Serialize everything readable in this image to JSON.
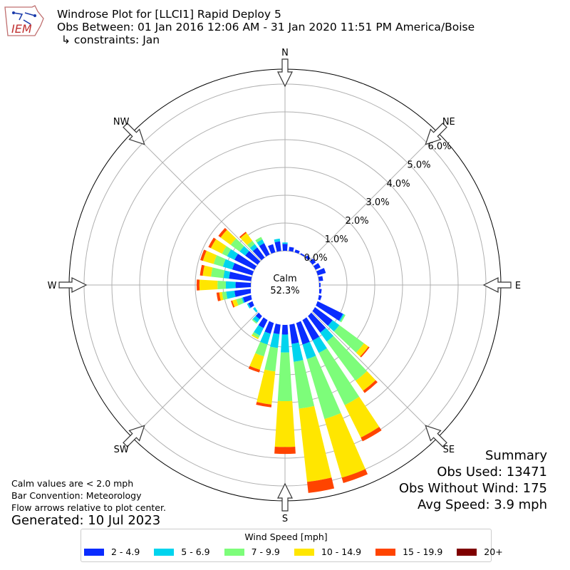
{
  "header": {
    "logo_text": "IEM",
    "title_line1": "Windrose Plot for [LLCI1] Rapid Deploy 5",
    "title_line2": "Obs Between: 01 Jan 2016 12:06 AM - 31 Jan 2020 11:51 PM America/Boise",
    "title_line3": "↳ constraints: Jan"
  },
  "notes": {
    "line1": "Calm values are < 2.0 mph",
    "line2": "Bar Convention: Meteorology",
    "line3": "Flow arrows relative to plot center.",
    "generated": "Generated: 10 Jul 2023"
  },
  "summary": {
    "title": "Summary",
    "obs_used": "Obs Used: 13471",
    "obs_without_wind": "Obs Without Wind: 175",
    "avg_speed": "Avg Speed: 3.9 mph"
  },
  "center": {
    "calm_label": "Calm",
    "calm_value": "52.3%"
  },
  "colors": {
    "bin_colors": [
      "#0a2cff",
      "#00d4ee",
      "#7dfd7a",
      "#ffe600",
      "#ff4400",
      "#7f0000"
    ],
    "grid": "#b0b0b0",
    "outline": "#000000"
  },
  "legend": {
    "title": "Wind Speed [mph]",
    "items": [
      "2 - 4.9",
      "5 - 6.9",
      "7 - 9.9",
      "10 - 14.9",
      "15 - 19.9",
      "20+"
    ]
  },
  "chart_data": {
    "type": "windrose",
    "direction_labels": [
      "N",
      "NE",
      "E",
      "SE",
      "S",
      "SW",
      "W",
      "NW"
    ],
    "radial_ticks": [
      "0.0%",
      "1.0%",
      "2.0%",
      "3.0%",
      "4.0%",
      "5.0%",
      "6.0%"
    ],
    "radial_range": [
      0,
      6.5
    ],
    "speed_bins": [
      "2 - 4.9",
      "5 - 6.9",
      "7 - 9.9",
      "10 - 14.9",
      "15 - 19.9",
      "20+"
    ],
    "directions_deg": [
      0,
      10,
      20,
      30,
      40,
      50,
      60,
      70,
      80,
      90,
      100,
      110,
      120,
      130,
      140,
      150,
      160,
      170,
      180,
      190,
      200,
      210,
      220,
      230,
      240,
      250,
      260,
      270,
      280,
      290,
      300,
      310,
      320,
      330,
      340,
      350
    ],
    "cumulative_percent": [
      [
        0.25,
        0.3,
        0.3,
        0.3,
        0.3,
        0.3
      ],
      [
        0.15,
        0.15,
        0.15,
        0.15,
        0.15,
        0.15
      ],
      [
        0.1,
        0.1,
        0.1,
        0.1,
        0.1,
        0.1
      ],
      [
        0.05,
        0.05,
        0.05,
        0.05,
        0.05,
        0.05
      ],
      [
        0.1,
        0.1,
        0.1,
        0.1,
        0.1,
        0.1
      ],
      [
        0.15,
        0.15,
        0.15,
        0.15,
        0.15,
        0.15
      ],
      [
        0.2,
        0.2,
        0.2,
        0.2,
        0.2,
        0.2
      ],
      [
        0.3,
        0.3,
        0.3,
        0.3,
        0.3,
        0.3
      ],
      [
        0.15,
        0.15,
        0.15,
        0.15,
        0.15,
        0.15
      ],
      [
        0.05,
        0.05,
        0.05,
        0.05,
        0.05,
        0.05
      ],
      [
        0.1,
        0.1,
        0.1,
        0.1,
        0.1,
        0.1
      ],
      [
        0.15,
        0.15,
        0.15,
        0.15,
        0.15,
        0.15
      ],
      [
        1.1,
        1.15,
        1.2,
        1.2,
        1.2,
        1.2
      ],
      [
        0.9,
        1.2,
        2.3,
        2.5,
        2.55,
        2.55
      ],
      [
        0.9,
        1.3,
        3.05,
        3.5,
        3.6,
        3.6
      ],
      [
        1.0,
        1.5,
        3.6,
        4.9,
        5.05,
        5.05
      ],
      [
        1.0,
        1.55,
        3.8,
        6.0,
        6.2,
        6.2
      ],
      [
        0.9,
        1.55,
        3.25,
        5.9,
        6.3,
        6.3
      ],
      [
        0.55,
        1.2,
        2.95,
        4.6,
        4.85,
        4.85
      ],
      [
        0.55,
        1.05,
        1.9,
        3.1,
        3.2,
        3.2
      ],
      [
        0.6,
        1.0,
        1.45,
        1.95,
        2.05,
        2.05
      ],
      [
        0.5,
        0.8,
        0.9,
        0.95,
        0.95,
        0.95
      ],
      [
        0.3,
        0.45,
        0.5,
        0.5,
        0.5,
        0.5
      ],
      [
        0.1,
        0.2,
        0.2,
        0.2,
        0.2,
        0.2
      ],
      [
        0.25,
        0.3,
        0.3,
        0.3,
        0.3,
        0.3
      ],
      [
        0.35,
        0.4,
        0.6,
        0.75,
        0.8,
        0.8
      ],
      [
        0.6,
        0.9,
        1.05,
        1.15,
        1.25,
        1.25
      ],
      [
        0.55,
        0.9,
        1.2,
        1.85,
        1.95,
        1.95
      ],
      [
        0.8,
        1.0,
        1.45,
        1.75,
        1.85,
        1.85
      ],
      [
        0.75,
        1.1,
        1.45,
        1.85,
        1.95,
        1.95
      ],
      [
        0.8,
        1.1,
        1.3,
        1.75,
        1.85,
        1.85
      ],
      [
        0.55,
        0.8,
        1.2,
        1.65,
        1.75,
        1.75
      ],
      [
        0.45,
        0.6,
        0.75,
        1.1,
        1.15,
        1.15
      ],
      [
        0.45,
        0.6,
        0.7,
        0.7,
        0.7,
        0.7
      ],
      [
        0.3,
        0.3,
        0.3,
        0.3,
        0.3,
        0.3
      ],
      [
        0.35,
        0.45,
        0.45,
        0.45,
        0.45,
        0.45
      ]
    ]
  }
}
